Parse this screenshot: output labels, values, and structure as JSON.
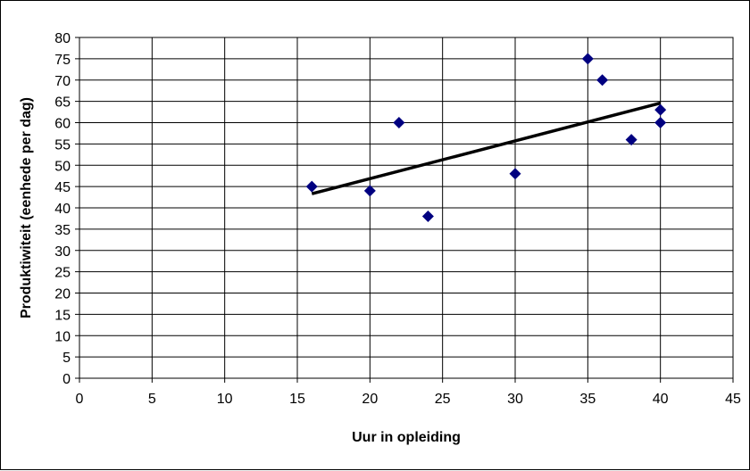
{
  "chart_data": {
    "type": "scatter",
    "title": "",
    "xlabel": "Uur in opleiding",
    "ylabel": "Produktiwiteit (eenhede per dag)",
    "xlim": [
      0,
      45
    ],
    "ylim": [
      0,
      80
    ],
    "x_ticks": [
      0,
      5,
      10,
      15,
      20,
      25,
      30,
      35,
      40,
      45
    ],
    "y_ticks": [
      0,
      5,
      10,
      15,
      20,
      25,
      30,
      35,
      40,
      45,
      50,
      55,
      60,
      65,
      70,
      75,
      80
    ],
    "grid": true,
    "legend": "none",
    "marker_color": "#000080",
    "trendline_color": "#000000",
    "series": [
      {
        "points": [
          {
            "x": 16,
            "y": 45
          },
          {
            "x": 20,
            "y": 44
          },
          {
            "x": 22,
            "y": 60
          },
          {
            "x": 24,
            "y": 38
          },
          {
            "x": 30,
            "y": 48
          },
          {
            "x": 35,
            "y": 75
          },
          {
            "x": 36,
            "y": 70
          },
          {
            "x": 38,
            "y": 56
          },
          {
            "x": 40,
            "y": 63
          },
          {
            "x": 40,
            "y": 60
          }
        ]
      }
    ],
    "trendline": {
      "x": [
        16,
        40
      ],
      "y": [
        43.3,
        64.6
      ]
    }
  }
}
